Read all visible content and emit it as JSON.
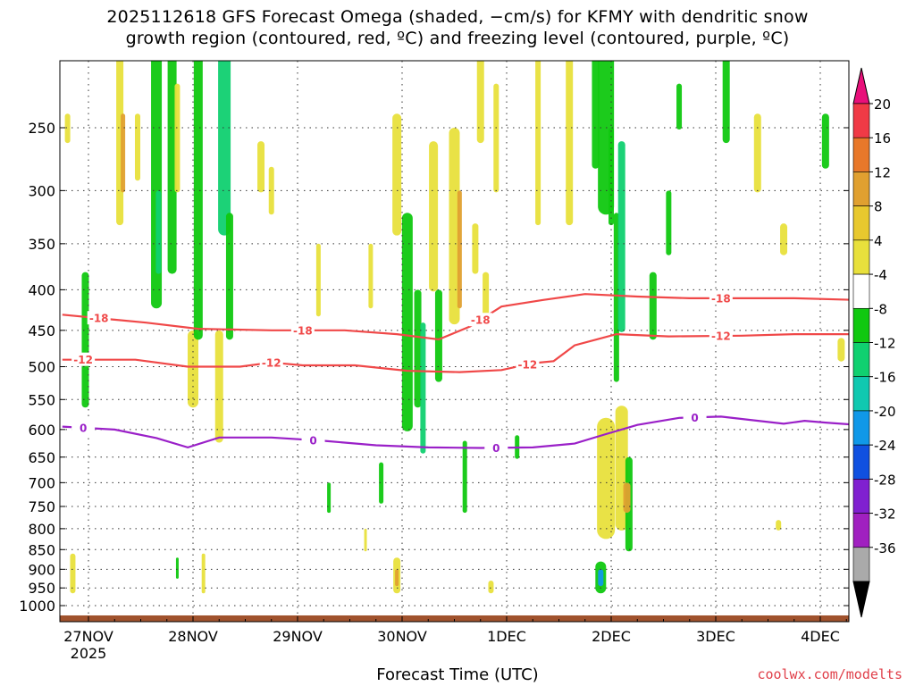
{
  "title_line1": "2025112618 GFS Forecast Omega (shaded, −cm/s) for KFMY with dendritic snow",
  "title_line2": "growth region (contoured, red, ºC) and freezing level (contoured, purple, ºC)",
  "xlabel": "Forecast Time (UTC)",
  "credit": "coolwx.com/modelts",
  "colors": {
    "dgz": "#f04848",
    "freezing": "#9a20c8",
    "ground": "#a0522d"
  },
  "chart_data": {
    "type": "heatmap",
    "x_ticks": [
      {
        "label": "27NOV",
        "sub": "2025",
        "day": 0.25
      },
      {
        "label": "28NOV",
        "sub": "",
        "day": 1.25
      },
      {
        "label": "29NOV",
        "sub": "",
        "day": 2.25
      },
      {
        "label": "30NOV",
        "sub": "",
        "day": 3.25
      },
      {
        "label": "1DEC",
        "sub": "",
        "day": 4.25
      },
      {
        "label": "2DEC",
        "sub": "",
        "day": 5.25
      },
      {
        "label": "3DEC",
        "sub": "",
        "day": 6.25
      },
      {
        "label": "4DEC",
        "sub": "",
        "day": 7.25
      }
    ],
    "y_ticks": [
      250,
      300,
      350,
      400,
      450,
      500,
      550,
      600,
      650,
      700,
      750,
      800,
      850,
      900,
      950,
      1000
    ],
    "ylim": [
      200,
      1025
    ],
    "xlim_days": [
      0,
      7.6
    ],
    "colorbar": {
      "labels": [
        "20",
        "16",
        "12",
        "8",
        "4",
        "-4",
        "-8",
        "-12",
        "-16",
        "-20",
        "-24",
        "-28",
        "-32",
        "-36"
      ],
      "colors": [
        "#f03a46",
        "#e8782a",
        "#e0a030",
        "#e8c82e",
        "#e8e03c",
        "#ffffff",
        "#10c810",
        "#10d070",
        "#10c8b0",
        "#1098e8",
        "#1050e0",
        "#8020d0",
        "#a020c0",
        "#aaaaaa"
      ],
      "top_arrow": "#e8107a",
      "bottom_arrow": "#000000"
    },
    "contours": [
      {
        "name": "dgz-minus-18",
        "value": "-18",
        "color": "#f04848",
        "points": [
          [
            0,
            430
          ],
          [
            0.8,
            440
          ],
          [
            1.3,
            448
          ],
          [
            2,
            450
          ],
          [
            2.7,
            450
          ],
          [
            3.2,
            455
          ],
          [
            3.6,
            462
          ],
          [
            3.9,
            445
          ],
          [
            4.2,
            420
          ],
          [
            4.6,
            412
          ],
          [
            5.0,
            405
          ],
          [
            5.5,
            408
          ],
          [
            6,
            410
          ],
          [
            6.5,
            410
          ],
          [
            7,
            410
          ],
          [
            7.6,
            412
          ]
        ],
        "labels_at": [
          0.35,
          2.3,
          4.0,
          6.3
        ]
      },
      {
        "name": "dgz-minus-12",
        "value": "-12",
        "color": "#f04848",
        "points": [
          [
            0,
            490
          ],
          [
            0.7,
            490
          ],
          [
            1.2,
            500
          ],
          [
            1.7,
            500
          ],
          [
            2,
            494
          ],
          [
            2.3,
            498
          ],
          [
            2.8,
            498
          ],
          [
            3.3,
            506
          ],
          [
            3.8,
            508
          ],
          [
            4.2,
            505
          ],
          [
            4.5,
            495
          ],
          [
            4.7,
            492
          ],
          [
            4.9,
            470
          ],
          [
            5.3,
            455
          ],
          [
            5.8,
            458
          ],
          [
            6.5,
            457
          ],
          [
            7,
            455
          ],
          [
            7.6,
            455
          ]
        ],
        "labels_at": [
          0.2,
          2.0,
          4.45,
          6.3
        ]
      },
      {
        "name": "freezing-0",
        "value": "0",
        "color": "#9a20c8",
        "points": [
          [
            0,
            595
          ],
          [
            0.5,
            600
          ],
          [
            0.9,
            615
          ],
          [
            1.2,
            632
          ],
          [
            1.5,
            614
          ],
          [
            2,
            614
          ],
          [
            2.5,
            620
          ],
          [
            3,
            628
          ],
          [
            3.5,
            632
          ],
          [
            4,
            633
          ],
          [
            4.5,
            632
          ],
          [
            4.9,
            625
          ],
          [
            5.2,
            608
          ],
          [
            5.5,
            592
          ],
          [
            5.9,
            580
          ],
          [
            6.3,
            578
          ],
          [
            6.6,
            584
          ],
          [
            6.9,
            590
          ],
          [
            7.1,
            585
          ],
          [
            7.3,
            588
          ],
          [
            7.6,
            592
          ]
        ],
        "labels_at": [
          0.2,
          2.4,
          4.15,
          6.05
        ]
      }
    ]
  }
}
